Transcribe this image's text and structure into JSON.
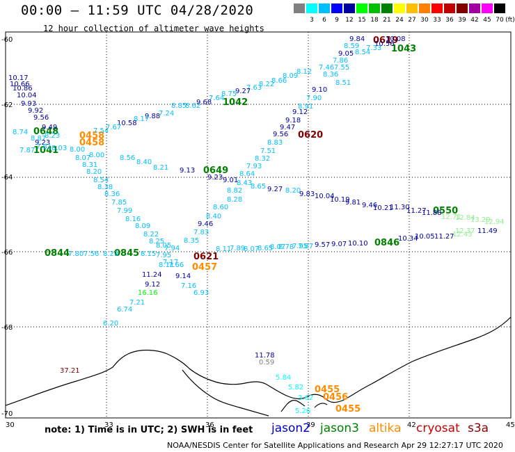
{
  "header": {
    "title": "00:00 – 11:59 UTC 04/28/2020",
    "subtitle": "12 hour collection of altimeter wave heights"
  },
  "legend": {
    "unit": "(ft)",
    "bins": [
      {
        "label": "",
        "color": "#808080"
      },
      {
        "label": "3",
        "color": "#00ffff"
      },
      {
        "label": "6",
        "color": "#00bfff"
      },
      {
        "label": "9",
        "color": "#0000ff"
      },
      {
        "label": "12",
        "color": "#0000a0"
      },
      {
        "label": "15",
        "color": "#00ff00"
      },
      {
        "label": "18",
        "color": "#00c000"
      },
      {
        "label": "21",
        "color": "#008000"
      },
      {
        "label": "24",
        "color": "#ffff00"
      },
      {
        "label": "27",
        "color": "#ffc000"
      },
      {
        "label": "30",
        "color": "#ff8000"
      },
      {
        "label": "33",
        "color": "#ff0000"
      },
      {
        "label": "36",
        "color": "#c00000"
      },
      {
        "label": "39",
        "color": "#800000"
      },
      {
        "label": "42",
        "color": "#a000a0"
      },
      {
        "label": "45",
        "color": "#ff00ff"
      },
      {
        "label": "70",
        "color": "#000000"
      }
    ]
  },
  "axes": {
    "lon_labels": [
      "30",
      "33",
      "36",
      "39",
      "42",
      "45"
    ],
    "lat_labels": [
      "-60",
      "-62",
      "-64",
      "-66",
      "-68",
      "-70"
    ]
  },
  "footer": {
    "note": "note:  1) Time is in UTC;  2) SWH is in feet",
    "credit": "NOAA/NESDIS Center for Satellite Applications and Research   Apr 29 12:27:17 UTC 2020",
    "satellites": [
      {
        "name": "jason2",
        "color": "#0000cc"
      },
      {
        "name": "jason3",
        "color": "#008000"
      },
      {
        "name": "altika",
        "color": "#ff8c00"
      },
      {
        "name": "cryosat",
        "color": "#cc0000"
      },
      {
        "name": "s3a",
        "color": "#8b0000"
      }
    ]
  },
  "map_labels": {
    "time_marks": [
      {
        "text": "0619",
        "color": "#800000"
      },
      {
        "text": "1043",
        "color": "#008000"
      },
      {
        "text": "1042",
        "color": "#008000"
      },
      {
        "text": "0620",
        "color": "#800000"
      },
      {
        "text": "0648",
        "color": "#008000"
      },
      {
        "text": "1041",
        "color": "#008000"
      },
      {
        "text": "0458",
        "color": "#ff8c00"
      },
      {
        "text": "0458",
        "color": "#ff8c00"
      },
      {
        "text": "0649",
        "color": "#008000"
      },
      {
        "text": "0550",
        "color": "#008000"
      },
      {
        "text": "0621",
        "color": "#800000"
      },
      {
        "text": "0457",
        "color": "#ff8c00"
      },
      {
        "text": "0844",
        "color": "#008000"
      },
      {
        "text": "0845",
        "color": "#008000"
      },
      {
        "text": "0846",
        "color": "#008000"
      },
      {
        "text": "0455",
        "color": "#ff8c00"
      },
      {
        "text": "0456",
        "color": "#ff8c00"
      },
      {
        "text": "0455",
        "color": "#ff8c00"
      }
    ],
    "wave_values": [
      {
        "text": "9.84",
        "color": "#0000a0"
      },
      {
        "text": "10.08",
        "color": "#0000a0"
      },
      {
        "text": "10.56",
        "color": "#0000a0"
      },
      {
        "text": "8.59",
        "color": "#00bfff"
      },
      {
        "text": "7.33",
        "color": "#00bfff"
      },
      {
        "text": "9.05",
        "color": "#0000a0"
      },
      {
        "text": "8.54",
        "color": "#00bfff"
      },
      {
        "text": "7.86",
        "color": "#00bfff"
      },
      {
        "text": "7.55",
        "color": "#00bfff"
      },
      {
        "text": "7.46",
        "color": "#00bfff"
      },
      {
        "text": "8.12",
        "color": "#00bfff"
      },
      {
        "text": "8.36",
        "color": "#00bfff"
      },
      {
        "text": "8.09",
        "color": "#00bfff"
      },
      {
        "text": "8.51",
        "color": "#00bfff"
      },
      {
        "text": "8.66",
        "color": "#00bfff"
      },
      {
        "text": "8.22",
        "color": "#00bfff"
      },
      {
        "text": "9.10",
        "color": "#0000a0"
      },
      {
        "text": "7.63",
        "color": "#00bfff"
      },
      {
        "text": "9.27",
        "color": "#0000a0"
      },
      {
        "text": "7.90",
        "color": "#00bfff"
      },
      {
        "text": "8.75",
        "color": "#00bfff"
      },
      {
        "text": "7.64",
        "color": "#00bfff"
      },
      {
        "text": "9.68",
        "color": "#0000a0"
      },
      {
        "text": "8.91",
        "color": "#00bfff"
      },
      {
        "text": "8.62",
        "color": "#00bfff"
      },
      {
        "text": "8.85",
        "color": "#00bfff"
      },
      {
        "text": "9.12",
        "color": "#0000a0"
      },
      {
        "text": "7.24",
        "color": "#00bfff"
      },
      {
        "text": "9.88",
        "color": "#0000a0"
      },
      {
        "text": "9.18",
        "color": "#0000a0"
      },
      {
        "text": "8.17",
        "color": "#00bfff"
      },
      {
        "text": "10.58",
        "color": "#0000a0"
      },
      {
        "text": "9.47",
        "color": "#0000a0"
      },
      {
        "text": "9.56",
        "color": "#0000a0"
      },
      {
        "text": "7.67",
        "color": "#00bfff"
      },
      {
        "text": "7.54",
        "color": "#00bfff"
      },
      {
        "text": "8.83",
        "color": "#00bfff"
      },
      {
        "text": "7.51",
        "color": "#00bfff"
      },
      {
        "text": "8.00",
        "color": "#00bfff"
      },
      {
        "text": "8.56",
        "color": "#00bfff"
      },
      {
        "text": "8.32",
        "color": "#00bfff"
      },
      {
        "text": "8.40",
        "color": "#00bfff"
      },
      {
        "text": "8.21",
        "color": "#00bfff"
      },
      {
        "text": "7.93",
        "color": "#00bfff"
      },
      {
        "text": "9.13",
        "color": "#0000a0"
      },
      {
        "text": "8.64",
        "color": "#00bfff"
      },
      {
        "text": "9.23",
        "color": "#0000a0"
      },
      {
        "text": "9.01",
        "color": "#0000a0"
      },
      {
        "text": "8.43",
        "color": "#00bfff"
      },
      {
        "text": "8.65",
        "color": "#00bfff"
      },
      {
        "text": "9.27",
        "color": "#0000a0"
      },
      {
        "text": "8.82",
        "color": "#00bfff"
      },
      {
        "text": "8.20",
        "color": "#00bfff"
      },
      {
        "text": "9.83",
        "color": "#0000a0"
      },
      {
        "text": "8.28",
        "color": "#00bfff"
      },
      {
        "text": "10.04",
        "color": "#0000a0"
      },
      {
        "text": "10.19",
        "color": "#0000a0"
      },
      {
        "text": "9.81",
        "color": "#0000a0"
      },
      {
        "text": "9.46",
        "color": "#0000a0"
      },
      {
        "text": "8.60",
        "color": "#00bfff"
      },
      {
        "text": "10.21",
        "color": "#0000a0"
      },
      {
        "text": "11.30",
        "color": "#0000a0"
      },
      {
        "text": "11.27",
        "color": "#0000a0"
      },
      {
        "text": "11.88",
        "color": "#0000a0"
      },
      {
        "text": "8.40",
        "color": "#00bfff"
      },
      {
        "text": "9.46",
        "color": "#0000a0"
      },
      {
        "text": "12.71",
        "color": "#90ee90"
      },
      {
        "text": "12.84",
        "color": "#90ee90"
      },
      {
        "text": "13.29",
        "color": "#90ee90"
      },
      {
        "text": "12.94",
        "color": "#90ee90"
      },
      {
        "text": "7.83",
        "color": "#00bfff"
      },
      {
        "text": "10.34",
        "color": "#0000a0"
      },
      {
        "text": "10.05",
        "color": "#0000a0"
      },
      {
        "text": "11.27",
        "color": "#0000a0"
      },
      {
        "text": "12.37",
        "color": "#90ee90"
      },
      {
        "text": "11.49",
        "color": "#0000a0"
      },
      {
        "text": "8.35",
        "color": "#00bfff"
      },
      {
        "text": "10.10",
        "color": "#0000a0"
      },
      {
        "text": "9.57",
        "color": "#0000a0"
      },
      {
        "text": "9.07",
        "color": "#0000a0"
      },
      {
        "text": "8.07",
        "color": "#00bfff"
      },
      {
        "text": "8.65",
        "color": "#00bfff"
      },
      {
        "text": "8.78",
        "color": "#00bfff"
      },
      {
        "text": "7.95",
        "color": "#00bfff"
      },
      {
        "text": "7.89",
        "color": "#00bfff"
      },
      {
        "text": "8.11",
        "color": "#00bfff"
      },
      {
        "text": "8.07",
        "color": "#00bfff"
      },
      {
        "text": "7.87",
        "color": "#00bfff"
      },
      {
        "text": "12.43",
        "color": "#90ee90"
      },
      {
        "text": "10.17",
        "color": "#0000a0"
      },
      {
        "text": "10.66",
        "color": "#0000a0"
      },
      {
        "text": "10.86",
        "color": "#0000a0"
      },
      {
        "text": "10.04",
        "color": "#0000a0"
      },
      {
        "text": "9.93",
        "color": "#0000a0"
      },
      {
        "text": "9.92",
        "color": "#0000a0"
      },
      {
        "text": "9.56",
        "color": "#0000a0"
      },
      {
        "text": "9.49",
        "color": "#0000a0"
      },
      {
        "text": "8.74",
        "color": "#00bfff"
      },
      {
        "text": "8.23",
        "color": "#00bfff"
      },
      {
        "text": "8.87",
        "color": "#00bfff"
      },
      {
        "text": "9.23",
        "color": "#0000a0"
      },
      {
        "text": "7.87",
        "color": "#00bfff"
      },
      {
        "text": "7.81",
        "color": "#00bfff"
      },
      {
        "text": "8.03",
        "color": "#00bfff"
      },
      {
        "text": "8.00",
        "color": "#00bfff"
      },
      {
        "text": "8.07",
        "color": "#00bfff"
      },
      {
        "text": "8.31",
        "color": "#00bfff"
      },
      {
        "text": "8.20",
        "color": "#00bfff"
      },
      {
        "text": "8.54",
        "color": "#00bfff"
      },
      {
        "text": "8.38",
        "color": "#00bfff"
      },
      {
        "text": "8.36",
        "color": "#00bfff"
      },
      {
        "text": "7.85",
        "color": "#00bfff"
      },
      {
        "text": "7.99",
        "color": "#00bfff"
      },
      {
        "text": "8.16",
        "color": "#00bfff"
      },
      {
        "text": "8.09",
        "color": "#00bfff"
      },
      {
        "text": "8.22",
        "color": "#00bfff"
      },
      {
        "text": "8.25",
        "color": "#00bfff"
      },
      {
        "text": "8.05",
        "color": "#00bfff"
      },
      {
        "text": "7.94",
        "color": "#00bfff"
      },
      {
        "text": "7.80",
        "color": "#00bfff"
      },
      {
        "text": "7.56",
        "color": "#00bfff"
      },
      {
        "text": "8.23",
        "color": "#00bfff"
      },
      {
        "text": "8.15",
        "color": "#00bfff"
      },
      {
        "text": "7.95",
        "color": "#00bfff"
      },
      {
        "text": "7.17",
        "color": "#00bfff"
      },
      {
        "text": "8.11",
        "color": "#00bfff"
      },
      {
        "text": "7.66",
        "color": "#00bfff"
      },
      {
        "text": "11.24",
        "color": "#0000a0"
      },
      {
        "text": "9.14",
        "color": "#0000a0"
      },
      {
        "text": "9.12",
        "color": "#0000a0"
      },
      {
        "text": "7.16",
        "color": "#00bfff"
      },
      {
        "text": "6.93",
        "color": "#00bfff"
      },
      {
        "text": "16.16",
        "color": "#00ff00"
      },
      {
        "text": "7.21",
        "color": "#00bfff"
      },
      {
        "text": "6.74",
        "color": "#00bfff"
      },
      {
        "text": "6.20",
        "color": "#00bfff"
      },
      {
        "text": "37.21",
        "color": "#800000"
      },
      {
        "text": "11.78",
        "color": "#0000a0"
      },
      {
        "text": "0.59",
        "color": "#808080"
      },
      {
        "text": "5.84",
        "color": "#00ffff"
      },
      {
        "text": "5.82",
        "color": "#00ffff"
      },
      {
        "text": "3.62",
        "color": "#00ffff"
      },
      {
        "text": "5.26",
        "color": "#00ffff"
      },
      {
        "text": "4.59",
        "color": "#00ffff"
      },
      {
        "text": "4.74",
        "color": "#00ffff"
      }
    ]
  }
}
